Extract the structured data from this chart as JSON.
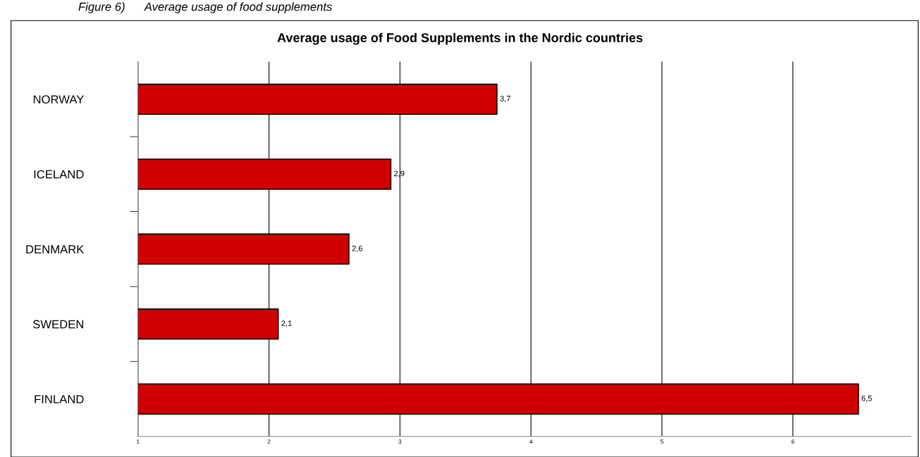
{
  "chart_data": {
    "type": "bar",
    "orientation": "horizontal",
    "title": "Average usage of Food Supplements in the Nordic countries",
    "annotations": [
      "Figure 6)      Average usage of food supplements"
    ],
    "categories": [
      "NORWAY",
      "ICELAND",
      "DENMARK",
      "SWEDEN",
      "FINLAND"
    ],
    "values": [
      3.74,
      2.93,
      2.61,
      2.07,
      6.5
    ],
    "value_labels": [
      "3,7",
      "2,9",
      "2,6",
      "2,1",
      "6,5"
    ],
    "color": "#d00000",
    "xlim": [
      1,
      6.9
    ],
    "xticks": [
      1,
      2,
      3,
      4,
      5,
      6
    ],
    "grid": "x",
    "legend": false
  }
}
